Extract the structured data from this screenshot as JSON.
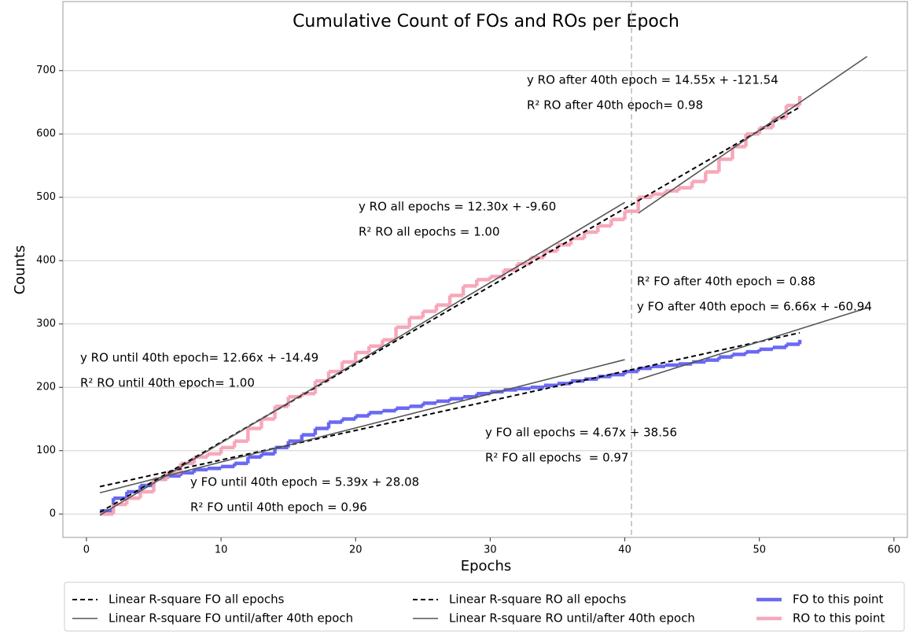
{
  "chart_data": {
    "type": "line",
    "title": "Cumulative Count of FOs and ROs per Epoch",
    "x_label": "Epochs",
    "y_label": "Counts",
    "xlim": [
      -1.75,
      61
    ],
    "ylim": [
      -37,
      809
    ],
    "xticks": [
      0,
      10,
      20,
      30,
      40,
      50,
      60
    ],
    "yticks": [
      0,
      100,
      200,
      300,
      400,
      500,
      600,
      700
    ],
    "grid": "y",
    "vline_x": 40.5,
    "legend": "bottom",
    "series": [
      {
        "name": "Linear R-square FO all epochs",
        "color": "#000000",
        "style": "dashed",
        "pieces": [
          {
            "x": [
              1,
              53
            ],
            "values": [
              43.23,
              286.07
            ]
          }
        ]
      },
      {
        "name": "Linear R-square FO until/after 40th epoch",
        "color": "#555555",
        "style": "solid",
        "pieces": [
          {
            "x": [
              1,
              40
            ],
            "values": [
              33.47,
              243.68
            ]
          },
          {
            "x": [
              41,
              58
            ],
            "values": [
              212.12,
              325.34
            ]
          }
        ]
      },
      {
        "name": "Linear R-square RO all epochs",
        "color": "#000000",
        "style": "dashed",
        "pieces": [
          {
            "x": [
              1,
              53
            ],
            "values": [
              2.7,
              642.3
            ]
          }
        ]
      },
      {
        "name": "Linear R-square RO until/after 40th epoch",
        "color": "#555555",
        "style": "solid",
        "pieces": [
          {
            "x": [
              1,
              40
            ],
            "values": [
              -1.83,
              491.91
            ]
          },
          {
            "x": [
              41,
              58
            ],
            "values": [
              475.01,
              722.36
            ]
          }
        ]
      },
      {
        "name": "FO to this point",
        "color": "#6262f2",
        "style": "step",
        "x": [
          1,
          2,
          3,
          4,
          5,
          6,
          7,
          8,
          9,
          10,
          11,
          12,
          13,
          14,
          15,
          16,
          17,
          18,
          19,
          20,
          21,
          22,
          23,
          24,
          25,
          26,
          27,
          28,
          29,
          30,
          31,
          32,
          33,
          34,
          35,
          36,
          37,
          38,
          39,
          40,
          41,
          42,
          43,
          44,
          45,
          46,
          47,
          48,
          49,
          50,
          51,
          52,
          53
        ],
        "values": [
          5,
          25,
          35,
          45,
          55,
          60,
          65,
          70,
          72,
          75,
          80,
          90,
          95,
          105,
          115,
          125,
          135,
          145,
          150,
          155,
          160,
          163,
          167,
          170,
          175,
          178,
          182,
          185,
          190,
          193,
          196,
          198,
          200,
          203,
          206,
          210,
          213,
          217,
          220,
          225,
          230,
          233,
          235,
          237,
          240,
          243,
          248,
          252,
          256,
          260,
          263,
          268,
          275
        ]
      },
      {
        "name": "RO to this point",
        "color": "#f7a3b6",
        "style": "step",
        "x": [
          1,
          2,
          3,
          4,
          5,
          6,
          7,
          8,
          9,
          10,
          11,
          12,
          13,
          14,
          15,
          16,
          17,
          18,
          19,
          20,
          21,
          22,
          23,
          24,
          25,
          26,
          27,
          28,
          29,
          30,
          31,
          32,
          33,
          34,
          35,
          36,
          37,
          38,
          39,
          40,
          41,
          42,
          43,
          44,
          45,
          46,
          47,
          48,
          49,
          50,
          51,
          52,
          53
        ],
        "values": [
          0,
          15,
          25,
          35,
          55,
          65,
          80,
          90,
          95,
          105,
          115,
          135,
          150,
          170,
          185,
          190,
          210,
          225,
          240,
          255,
          265,
          275,
          295,
          310,
          320,
          330,
          345,
          360,
          370,
          375,
          385,
          395,
          405,
          415,
          425,
          435,
          445,
          455,
          465,
          478,
          500,
          505,
          510,
          515,
          525,
          540,
          560,
          580,
          600,
          610,
          625,
          645,
          660
        ]
      }
    ],
    "annotations": [
      "y RO after 40th epoch = 14.55x + -121.54",
      "R² RO after 40th epoch= 0.98",
      "y RO all epochs = 12.30x + -9.60",
      "R² RO all epochs = 1.00",
      "R² FO after 40th epoch = 0.88",
      "y FO after 40th epoch = 6.66x + -60.94",
      "y RO until 40th epoch= 12.66x + -14.49",
      "R² RO until 40th epoch= 1.00",
      "y FO all epochs = 4.67x + 38.56",
      "R² FO all epochs  = 0.97",
      "y FO until 40th epoch = 5.39x + 28.08",
      "R² FO until 40th epoch = 0.96"
    ]
  }
}
